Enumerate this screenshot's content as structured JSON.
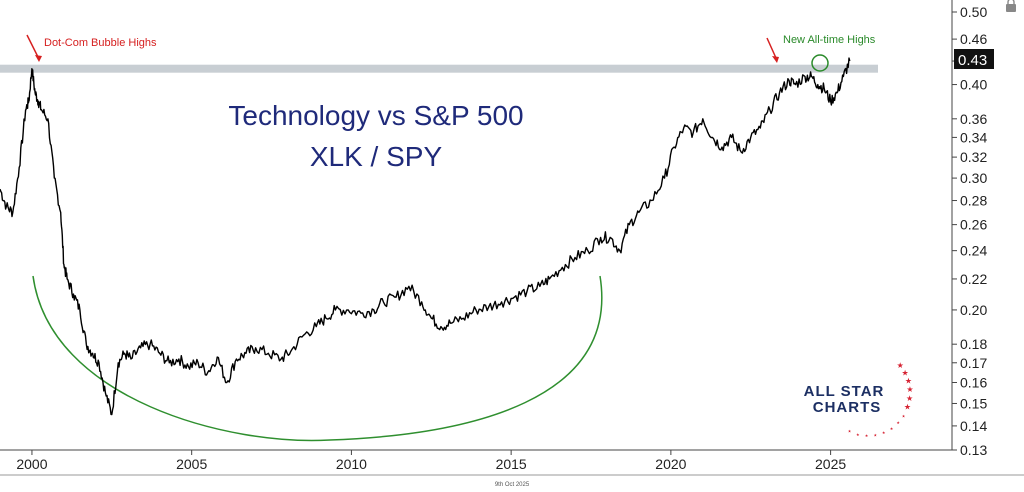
{
  "chart_data": {
    "type": "line",
    "title": "Technology vs S&P 500",
    "subtitle": "XLK / SPY",
    "xlabel": "",
    "ylabel": "",
    "scale": "log",
    "xlim": [
      1999.0,
      2028.8
    ],
    "ylim": [
      0.13,
      0.5
    ],
    "x_ticks": [
      2000,
      2005,
      2010,
      2015,
      2020,
      2025
    ],
    "x_tick_labels": [
      "2000",
      "2005",
      "2010",
      "2015",
      "2020",
      "2025"
    ],
    "y_ticks": [
      0.5,
      0.46,
      0.43,
      0.4,
      0.36,
      0.34,
      0.32,
      0.3,
      0.28,
      0.26,
      0.24,
      0.22,
      0.2,
      0.18,
      0.17,
      0.16,
      0.15,
      0.14,
      0.13
    ],
    "y_tick_labels": [
      "0.50",
      "0.46",
      "0.43",
      "0.40",
      "0.36",
      "0.34",
      "0.32",
      "0.30",
      "0.28",
      "0.26",
      "0.24",
      "0.22",
      "0.20",
      "0.18",
      "0.17",
      "0.16",
      "0.15",
      "0.14",
      "0.13"
    ],
    "last_value_label": "0.43",
    "date_stamp": "9th Oct 2025",
    "grid": false,
    "series": [
      {
        "color": "#000000",
        "x": [
          1999.0,
          1999.2,
          1999.4,
          1999.6,
          1999.8,
          1999.9,
          2000.0,
          2000.1,
          2000.2,
          2000.3,
          2000.5,
          2000.7,
          2000.9,
          2001.0,
          2001.1,
          2001.3,
          2001.5,
          2001.7,
          2001.9,
          2002.1,
          2002.3,
          2002.5,
          2002.7,
          2002.9,
          2003.1,
          2003.4,
          2003.7,
          2004.0,
          2004.3,
          2004.6,
          2004.9,
          2005.2,
          2005.5,
          2005.8,
          2006.1,
          2006.4,
          2006.7,
          2007.0,
          2007.4,
          2007.8,
          2008.1,
          2008.5,
          2008.9,
          2009.2,
          2009.5,
          2009.9,
          2010.3,
          2010.7,
          2011.0,
          2011.4,
          2011.8,
          2012.2,
          2012.5,
          2012.8,
          2013.1,
          2013.5,
          2013.9,
          2014.3,
          2014.7,
          2015.1,
          2015.5,
          2015.9,
          2016.2,
          2016.6,
          2017.0,
          2017.4,
          2017.8,
          2018.1,
          2018.4,
          2018.7,
          2019.0,
          2019.4,
          2019.8,
          2020.1,
          2020.4,
          2020.7,
          2021.0,
          2021.3,
          2021.6,
          2021.9,
          2022.2,
          2022.5,
          2022.8,
          2023.1,
          2023.4,
          2023.7,
          2023.9,
          2024.2,
          2024.4,
          2024.6,
          2024.8,
          2025.0,
          2025.2,
          2025.4,
          2025.6
        ],
        "y": [
          0.29,
          0.275,
          0.27,
          0.31,
          0.37,
          0.38,
          0.42,
          0.39,
          0.38,
          0.37,
          0.36,
          0.3,
          0.27,
          0.23,
          0.22,
          0.21,
          0.2,
          0.18,
          0.175,
          0.17,
          0.155,
          0.145,
          0.17,
          0.175,
          0.172,
          0.178,
          0.18,
          0.175,
          0.17,
          0.172,
          0.168,
          0.17,
          0.165,
          0.173,
          0.16,
          0.172,
          0.175,
          0.178,
          0.175,
          0.172,
          0.176,
          0.185,
          0.19,
          0.195,
          0.2,
          0.2,
          0.198,
          0.2,
          0.205,
          0.208,
          0.215,
          0.205,
          0.195,
          0.19,
          0.192,
          0.195,
          0.2,
          0.202,
          0.205,
          0.208,
          0.212,
          0.215,
          0.22,
          0.228,
          0.235,
          0.24,
          0.25,
          0.25,
          0.24,
          0.26,
          0.27,
          0.28,
          0.3,
          0.33,
          0.35,
          0.345,
          0.36,
          0.34,
          0.33,
          0.34,
          0.325,
          0.34,
          0.35,
          0.37,
          0.39,
          0.405,
          0.4,
          0.41,
          0.41,
          0.4,
          0.395,
          0.38,
          0.39,
          0.41,
          0.43
        ]
      }
    ],
    "annotations": {
      "dotcom": {
        "text": "Dot-Com Bubble Highs",
        "color": "#d62020"
      },
      "ath": {
        "text": "New All-time Highs",
        "color": "#2a8a2a"
      },
      "resistance_level": 0.42,
      "base_color": "#2f8f2f",
      "resistance_color": "#c8ced3"
    }
  },
  "logo": {
    "line1": "ALL STAR",
    "line2": "CHARTS",
    "text_color": "#1c2f63",
    "star_color": "#d62232"
  }
}
